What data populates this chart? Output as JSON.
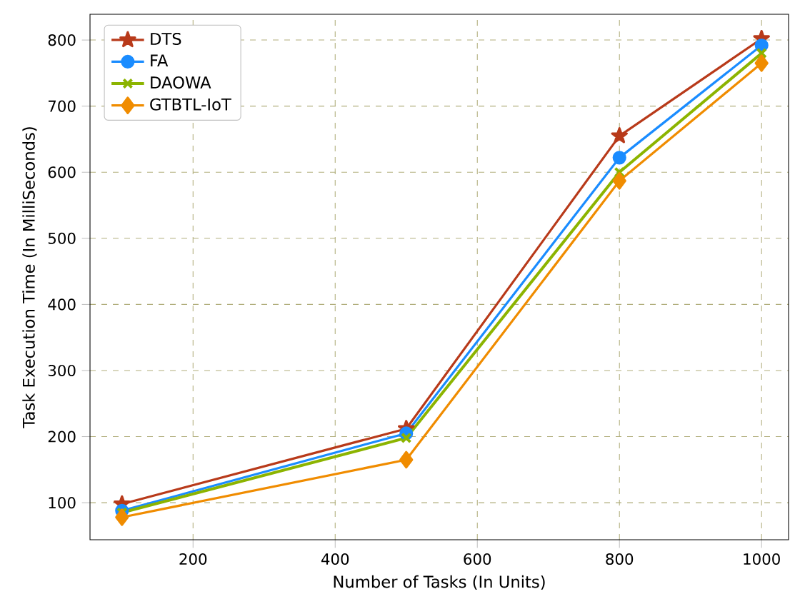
{
  "chart_data": {
    "type": "line",
    "xlabel": "Number of Tasks (In Units)",
    "ylabel": "Task Execution Time (In MilliSeconds)",
    "x": [
      100,
      500,
      800,
      1000
    ],
    "series": [
      {
        "name": "DTS",
        "color": "#b83a1a",
        "values": [
          98,
          212,
          655,
          802
        ],
        "marker": "star"
      },
      {
        "name": "FA",
        "color": "#1a8cff",
        "values": [
          88,
          205,
          622,
          792
        ],
        "marker": "circle"
      },
      {
        "name": "DAOWA",
        "color": "#8cb400",
        "values": [
          85,
          198,
          600,
          780
        ],
        "marker": "cross"
      },
      {
        "name": "GTBTL-IoT",
        "color": "#f08c00",
        "values": [
          78,
          165,
          587,
          765
        ],
        "marker": "diamond"
      }
    ],
    "xlim": [
      55,
      1038
    ],
    "ylim": [
      44,
      839
    ],
    "xticks": [
      200,
      400,
      600,
      800,
      1000
    ],
    "yticks": [
      100,
      200,
      300,
      400,
      500,
      600,
      700,
      800
    ],
    "grid": true,
    "legend": "top left",
    "line_style": "solid"
  }
}
